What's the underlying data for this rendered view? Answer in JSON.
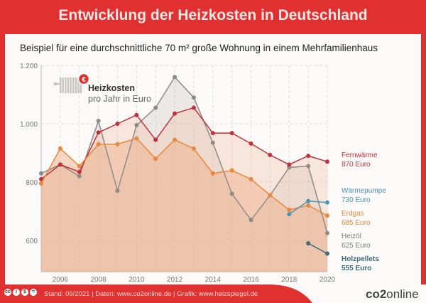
{
  "header": {
    "title": "Entwicklung der Heizkosten in Deutschland"
  },
  "subtitle": "Beispiel für eine durchschnittliche 70 m² große Wohnung in einem Mehrfamilienhaus",
  "legend": {
    "title": "Heizkosten",
    "subtitle": "pro Jahr in Euro",
    "icon": "radiator-euro-icon"
  },
  "footer": {
    "license_icons": [
      "cc",
      "by",
      "nc",
      "nd"
    ],
    "text": "Stand: 09/2021  |  Daten: www.co2online.de  |  Grafik: www.heizspiegel.de",
    "brand_prefix": "co2",
    "brand_suffix": "online"
  },
  "colors": {
    "fernwaerme": "#c0313a",
    "erdgas": "#e8883a",
    "heizoel": "#8f8a86",
    "waermepumpe": "#4a95b8",
    "holzpellets": "#3d6a78",
    "accent": "#e03130"
  },
  "chart_data": {
    "type": "area",
    "title": "Heizkosten pro Jahr in Euro",
    "xlabel": "",
    "ylabel": "",
    "x": [
      2005,
      2006,
      2007,
      2008,
      2009,
      2010,
      2011,
      2012,
      2013,
      2014,
      2015,
      2016,
      2017,
      2018,
      2019,
      2020
    ],
    "xticks": [
      "2006",
      "2008",
      "2010",
      "2012",
      "2014",
      "2016",
      "2018",
      "2020"
    ],
    "yticks": [
      "600",
      "800",
      "1.000",
      "1.200"
    ],
    "ylim": [
      550,
      1200
    ],
    "grid": true,
    "series": [
      {
        "key": "heizoel",
        "name": "Heizöl",
        "end_label": "625 Euro",
        "values": [
          830,
          860,
          820,
          1010,
          770,
          995,
          1055,
          1160,
          1090,
          935,
          760,
          670,
          755,
          850,
          855,
          625
        ]
      },
      {
        "key": "fernwaerme",
        "name": "Fernwärme",
        "end_label": "870 Euro",
        "values": [
          810,
          860,
          835,
          970,
          1000,
          1030,
          945,
          1035,
          1055,
          968,
          968,
          932,
          893,
          860,
          890,
          870
        ]
      },
      {
        "key": "erdgas",
        "name": "Erdgas",
        "end_label": "685 Euro",
        "values": [
          795,
          915,
          855,
          930,
          930,
          950,
          880,
          945,
          915,
          830,
          840,
          810,
          755,
          705,
          720,
          685
        ]
      },
      {
        "key": "waermepumpe",
        "name": "Wärmepumpe",
        "end_label": "730 Euro",
        "values": [
          null,
          null,
          null,
          null,
          null,
          null,
          null,
          null,
          null,
          null,
          null,
          null,
          null,
          690,
          735,
          730
        ]
      },
      {
        "key": "holzpellets",
        "name": "Holzpellets",
        "end_label": "555 Euro",
        "values": [
          null,
          null,
          null,
          null,
          null,
          null,
          null,
          null,
          null,
          null,
          null,
          null,
          null,
          null,
          590,
          555
        ]
      }
    ]
  }
}
